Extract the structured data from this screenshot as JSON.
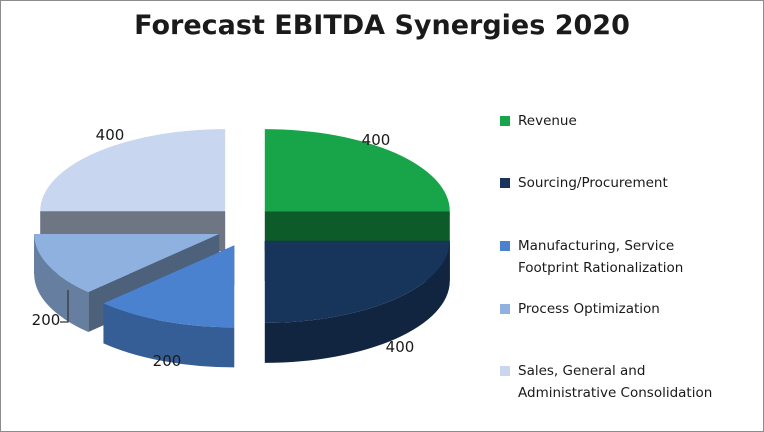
{
  "chart_data": {
    "type": "pie",
    "title": "Forecast EBITDA Synergies 2020",
    "categories": [
      "Revenue",
      "Sourcing/Procurement",
      "Manufacturing, Service Footprint Rationalization",
      "Process Optimization",
      "Sales, General and Administrative Consolidation"
    ],
    "values": [
      400,
      400,
      200,
      200,
      400
    ],
    "data_labels": [
      "400",
      "400",
      "200",
      "200",
      "400"
    ],
    "colors": [
      "#18a54a",
      "#17345a",
      "#4b82d0",
      "#8eb1e0",
      "#c8d7ef"
    ],
    "style": "3d-exploded",
    "legend_position": "right"
  },
  "legend": {
    "items": [
      {
        "line1": "Revenue",
        "line2": ""
      },
      {
        "line1": "Sourcing/Procurement",
        "line2": ""
      },
      {
        "line1": "Manufacturing, Service",
        "line2": "Footprint Rationalization"
      },
      {
        "line1": "Process Optimization",
        "line2": ""
      },
      {
        "line1": "Sales, General and",
        "line2": "Administrative Consolidation"
      }
    ]
  }
}
